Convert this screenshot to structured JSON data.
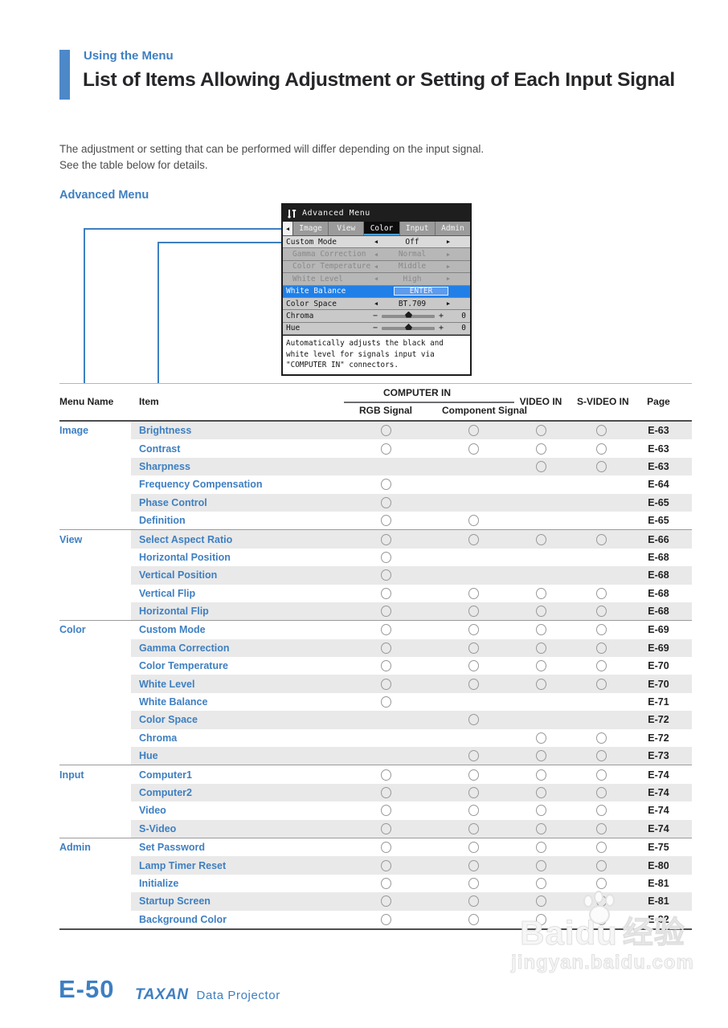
{
  "page": {
    "eyebrow": "Using the Menu",
    "title": "List of Items Allowing Adjustment or Setting of Each Input Signal",
    "intro_line1": "The adjustment or setting that can be performed will differ depending on the input signal.",
    "intro_line2": "See the table below for details.",
    "section_label": "Advanced Menu",
    "page_number": "E-50",
    "brand": "TAXAN",
    "brand_suffix": "Data Projector"
  },
  "colors": {
    "accent_blue": "#3e7fc1",
    "bar_blue": "#4d88c9",
    "row_shade": "#e9e9e9",
    "osd_highlight_blue": "#2080e8",
    "osd_tab_underline": "#4a9fd8"
  },
  "osd_menu": {
    "title": "Advanced Menu",
    "title_icon": "tools-icon",
    "glyphs": {
      "back": "◀",
      "left": "◀",
      "right": "▶",
      "minus": "−",
      "plus": "+"
    },
    "tabs": [
      {
        "label": "Image",
        "active": false
      },
      {
        "label": "View",
        "active": false
      },
      {
        "label": "Color",
        "active": true
      },
      {
        "label": "Input",
        "active": false
      },
      {
        "label": "Admin",
        "active": false
      }
    ],
    "rows": [
      {
        "label": "Custom Mode",
        "type": "arrows",
        "value": "Off",
        "state": "selected"
      },
      {
        "label": "Gamma Correction",
        "type": "arrows",
        "value": "Normal",
        "state": "disabled"
      },
      {
        "label": "Color Temperature",
        "type": "arrows",
        "value": "Middle",
        "state": "disabled"
      },
      {
        "label": "White Level",
        "type": "arrows",
        "value": "High",
        "state": "disabled"
      },
      {
        "label": "White Balance",
        "type": "button",
        "value": "ENTER",
        "state": "highlighted"
      },
      {
        "label": "Color Space",
        "type": "arrows",
        "value": "BT.709",
        "state": "normal"
      },
      {
        "label": "Chroma",
        "type": "slider",
        "value": "0",
        "state": "normal"
      },
      {
        "label": "Hue",
        "type": "slider",
        "value": "0",
        "state": "normal"
      }
    ],
    "info_text": "Automatically adjusts the black and white level for signals input via \"COMPUTER IN\" connectors."
  },
  "table": {
    "headers": {
      "menu_name": "Menu Name",
      "item": "Item",
      "computer_in": "COMPUTER IN",
      "rgb": "RGB Signal",
      "component": "Component Signal",
      "video": "VIDEO IN",
      "svideo": "S-VIDEO IN",
      "page": "Page"
    },
    "groups": [
      {
        "name": "Image",
        "rows": [
          {
            "item": "Brightness",
            "rgb": true,
            "component": true,
            "video": true,
            "svideo": true,
            "page": "E-63"
          },
          {
            "item": "Contrast",
            "rgb": true,
            "component": true,
            "video": true,
            "svideo": true,
            "page": "E-63"
          },
          {
            "item": "Sharpness",
            "rgb": false,
            "component": false,
            "video": true,
            "svideo": true,
            "page": "E-63"
          },
          {
            "item": "Frequency Compensation",
            "rgb": true,
            "component": false,
            "video": false,
            "svideo": false,
            "page": "E-64"
          },
          {
            "item": "Phase Control",
            "rgb": true,
            "component": false,
            "video": false,
            "svideo": false,
            "page": "E-65"
          },
          {
            "item": "Definition",
            "rgb": true,
            "component": true,
            "video": false,
            "svideo": false,
            "page": "E-65"
          }
        ]
      },
      {
        "name": "View",
        "rows": [
          {
            "item": "Select Aspect Ratio",
            "rgb": true,
            "component": true,
            "video": true,
            "svideo": true,
            "page": "E-66"
          },
          {
            "item": "Horizontal Position",
            "rgb": true,
            "component": false,
            "video": false,
            "svideo": false,
            "page": "E-68"
          },
          {
            "item": "Vertical Position",
            "rgb": true,
            "component": false,
            "video": false,
            "svideo": false,
            "page": "E-68"
          },
          {
            "item": "Vertical Flip",
            "rgb": true,
            "component": true,
            "video": true,
            "svideo": true,
            "page": "E-68"
          },
          {
            "item": "Horizontal Flip",
            "rgb": true,
            "component": true,
            "video": true,
            "svideo": true,
            "page": "E-68"
          }
        ]
      },
      {
        "name": "Color",
        "rows": [
          {
            "item": "Custom Mode",
            "rgb": true,
            "component": true,
            "video": true,
            "svideo": true,
            "page": "E-69"
          },
          {
            "item": "Gamma Correction",
            "rgb": true,
            "component": true,
            "video": true,
            "svideo": true,
            "page": "E-69"
          },
          {
            "item": "Color Temperature",
            "rgb": true,
            "component": true,
            "video": true,
            "svideo": true,
            "page": "E-70"
          },
          {
            "item": "White Level",
            "rgb": true,
            "component": true,
            "video": true,
            "svideo": true,
            "page": "E-70"
          },
          {
            "item": "White Balance",
            "rgb": true,
            "component": false,
            "video": false,
            "svideo": false,
            "page": "E-71"
          },
          {
            "item": "Color Space",
            "rgb": false,
            "component": true,
            "video": false,
            "svideo": false,
            "page": "E-72"
          },
          {
            "item": "Chroma",
            "rgb": false,
            "component": false,
            "video": true,
            "svideo": true,
            "page": "E-72"
          },
          {
            "item": "Hue",
            "rgb": false,
            "component": true,
            "video": true,
            "svideo": true,
            "page": "E-73"
          }
        ]
      },
      {
        "name": "Input",
        "rows": [
          {
            "item": "Computer1",
            "rgb": true,
            "component": true,
            "video": true,
            "svideo": true,
            "page": "E-74"
          },
          {
            "item": "Computer2",
            "rgb": true,
            "component": true,
            "video": true,
            "svideo": true,
            "page": "E-74"
          },
          {
            "item": "Video",
            "rgb": true,
            "component": true,
            "video": true,
            "svideo": true,
            "page": "E-74"
          },
          {
            "item": "S-Video",
            "rgb": true,
            "component": true,
            "video": true,
            "svideo": true,
            "page": "E-74"
          }
        ]
      },
      {
        "name": "Admin",
        "rows": [
          {
            "item": "Set Password",
            "rgb": true,
            "component": true,
            "video": true,
            "svideo": true,
            "page": "E-75"
          },
          {
            "item": "Lamp Timer Reset",
            "rgb": true,
            "component": true,
            "video": true,
            "svideo": true,
            "page": "E-80"
          },
          {
            "item": "Initialize",
            "rgb": true,
            "component": true,
            "video": true,
            "svideo": true,
            "page": "E-81"
          },
          {
            "item": "Startup Screen",
            "rgb": true,
            "component": true,
            "video": true,
            "svideo": true,
            "page": "E-81"
          },
          {
            "item": "Background Color",
            "rgb": true,
            "component": true,
            "video": true,
            "svideo": true,
            "page": "E-82"
          }
        ]
      }
    ]
  },
  "watermark": {
    "word1": "Baidu",
    "word2": "经验",
    "line2": "jingyan.baidu.com"
  }
}
